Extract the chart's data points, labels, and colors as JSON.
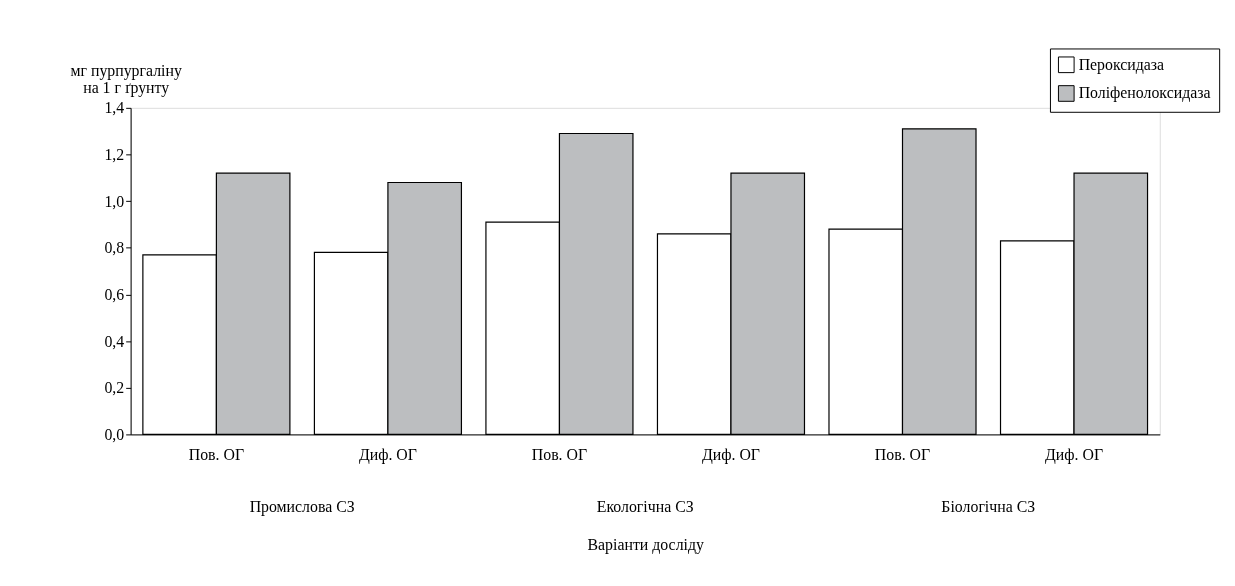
{
  "chart_data": {
    "type": "bar",
    "xlabel": "Варіанти досліду",
    "ylabel": "мг пурпургаліну\nна 1 г ґрунту",
    "categories": [
      "Пов. ОГ",
      "Диф. ОГ",
      "Пов. ОГ",
      "Диф. ОГ",
      "Пов. ОГ",
      "Диф. ОГ"
    ],
    "series": [
      {
        "name": "Пероксидаза",
        "color": "#ffffff",
        "values": [
          0.77,
          0.78,
          0.91,
          0.86,
          0.88,
          0.83
        ]
      },
      {
        "name": "Поліфенолоксидаза",
        "color": "#bcbec0",
        "values": [
          1.12,
          1.08,
          1.29,
          1.12,
          1.31,
          1.12
        ]
      }
    ],
    "ylim": [
      0,
      1.4
    ],
    "yticks": [
      {
        "value": 0,
        "label": "0,0"
      },
      {
        "value": 0.2,
        "label": "0,2"
      },
      {
        "value": 0.4,
        "label": "0,4"
      },
      {
        "value": 0.6,
        "label": "0,6"
      },
      {
        "value": 0.8,
        "label": "0,8"
      },
      {
        "value": 1.0,
        "label": "1,0"
      },
      {
        "value": 1.2,
        "label": "1,2"
      },
      {
        "value": 1.4,
        "label": "1,4"
      }
    ],
    "annotations": [
      "Промислова СЗ",
      "Екологічна СЗ",
      "Біологічна СЗ"
    ],
    "grid": false,
    "legend": "top right"
  }
}
